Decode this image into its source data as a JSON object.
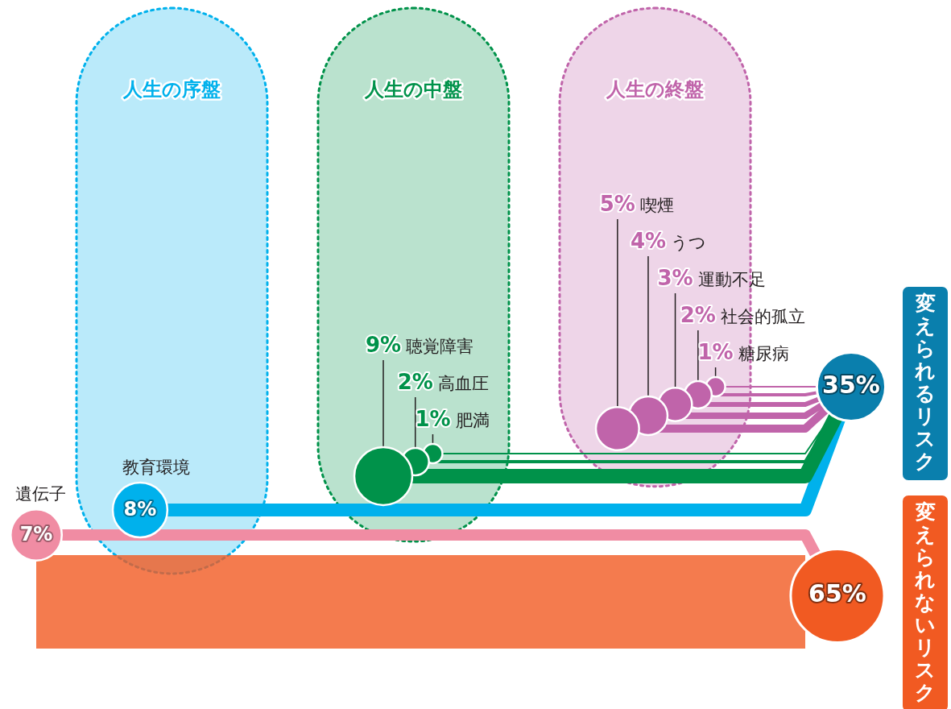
{
  "chart_data": {
    "type": "other",
    "categories": [
      "遺伝子",
      "教育環境",
      "聴覚障害",
      "高血圧",
      "肥満",
      "喫煙",
      "うつ",
      "運動不足",
      "社会的孤立",
      "糖尿病"
    ],
    "series": [
      {
        "name": "人生の序盤",
        "color": "#00b1ec",
        "values": [
          null,
          8,
          null,
          null,
          null,
          null,
          null,
          null,
          null,
          null
        ],
        "value_labels": [
          null,
          "8%",
          null,
          null,
          null,
          null,
          null,
          null,
          null,
          null
        ]
      },
      {
        "name": "人生の中盤",
        "color": "#00924a",
        "values": [
          null,
          null,
          9,
          2,
          1,
          null,
          null,
          null,
          null,
          null
        ],
        "value_labels": [
          null,
          null,
          "9%",
          "2%",
          "1%",
          null,
          null,
          null,
          null,
          null
        ]
      },
      {
        "name": "人生の終盤",
        "color": "#c064aa",
        "values": [
          null,
          null,
          null,
          null,
          null,
          5,
          4,
          3,
          2,
          1
        ],
        "value_labels": [
          null,
          null,
          null,
          null,
          null,
          "5%",
          "4%",
          "3%",
          "2%",
          "1%"
        ]
      },
      {
        "color": "#f08ca3",
        "axis": "y2",
        "values": [
          7,
          null,
          null,
          null,
          null,
          null,
          null,
          null,
          null,
          null
        ],
        "value_labels": [
          "7%",
          null,
          null,
          null,
          null,
          null,
          null,
          null,
          null,
          null
        ]
      }
    ],
    "totals": [
      "35%",
      "65%"
    ],
    "annotations": [
      "変えられるリスク",
      "変えられないリスク"
    ]
  }
}
